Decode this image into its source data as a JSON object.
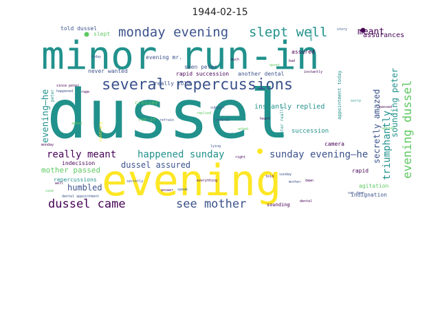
{
  "chart_data": {
    "type": "wordcloud",
    "title": "1944-02-15",
    "palette": [
      "#440154",
      "#3b528b",
      "#21918c",
      "#5ec962",
      "#fde725"
    ],
    "words": [
      {
        "text": "dussel",
        "weight": 1.0,
        "color": "#21918c"
      },
      {
        "text": "minor run-in",
        "weight": 0.66,
        "color": "#21918c"
      },
      {
        "text": "evening",
        "weight": 0.6,
        "color": "#fde725"
      },
      {
        "text": "several repercussions",
        "weight": 0.3,
        "color": "#3b528b"
      },
      {
        "text": "monday evening",
        "weight": 0.26,
        "color": "#3b528b"
      },
      {
        "text": "slept well",
        "weight": 0.26,
        "color": "#21918c"
      },
      {
        "text": "dussel came",
        "weight": 0.24,
        "color": "#440154"
      },
      {
        "text": "see mother",
        "weight": 0.24,
        "color": "#3b528b"
      },
      {
        "text": "evening dussel",
        "weight": 0.2,
        "color": "#5ec962"
      },
      {
        "text": "triumphantly",
        "weight": 0.17,
        "color": "#21918c"
      },
      {
        "text": "sunday evening—he",
        "weight": 0.17,
        "color": "#3b528b"
      },
      {
        "text": "happened sunday",
        "weight": 0.17,
        "color": "#21918c"
      },
      {
        "text": "really meant",
        "weight": 0.17,
        "color": "#440154"
      },
      {
        "text": "evening—he",
        "weight": 0.15,
        "color": "#21918c"
      },
      {
        "text": "meant",
        "weight": 0.15,
        "color": "#440154"
      },
      {
        "text": "dussel assured",
        "weight": 0.14,
        "color": "#3b528b"
      },
      {
        "text": "sounding peter",
        "weight": 0.13,
        "color": "#21918c"
      },
      {
        "text": "secretly amazed",
        "weight": 0.13,
        "color": "#3b528b"
      },
      {
        "text": "humbled",
        "weight": 0.13,
        "color": "#3b528b"
      },
      {
        "text": "mother passed",
        "weight": 0.12,
        "color": "#5ec962"
      },
      {
        "text": "assurances",
        "weight": 0.11,
        "color": "#440154"
      },
      {
        "text": "instantly replied",
        "weight": 0.1,
        "color": "#21918c"
      },
      {
        "text": "rapid succession",
        "weight": 0.09,
        "color": "#440154"
      },
      {
        "text": "another dental",
        "weight": 0.09,
        "color": "#3b528b"
      },
      {
        "text": "never wanted",
        "weight": 0.09,
        "color": "#3b528b"
      },
      {
        "text": "crossed",
        "weight": 0.09,
        "color": "#5ec962"
      },
      {
        "text": "seen peter",
        "weight": 0.08,
        "color": "#3b528b"
      },
      {
        "text": "evening mr.",
        "weight": 0.08,
        "color": "#3b528b"
      },
      {
        "text": "assured",
        "weight": 0.08,
        "color": "#440154"
      },
      {
        "text": "really told",
        "weight": 0.08,
        "color": "#3b528b"
      },
      {
        "text": "told dussel",
        "weight": 0.08,
        "color": "#3b528b"
      },
      {
        "text": "slept",
        "weight": 0.08,
        "color": "#5ec962"
      },
      {
        "text": "camera",
        "weight": 0.09,
        "color": "#440154"
      },
      {
        "text": "succession",
        "weight": 0.09,
        "color": "#21918c"
      },
      {
        "text": "indecision",
        "weight": 0.08,
        "color": "#440154"
      },
      {
        "text": "repercussions",
        "weight": 0.08,
        "color": "#21918c"
      },
      {
        "text": "rapid",
        "weight": 0.08,
        "color": "#440154"
      },
      {
        "text": "agitation",
        "weight": 0.08,
        "color": "#5ec962"
      },
      {
        "text": "indignation",
        "weight": 0.08,
        "color": "#3b528b"
      },
      {
        "text": "sounding",
        "weight": 0.07,
        "color": "#440154"
      },
      {
        "text": "appointment today",
        "weight": 0.07,
        "color": "#21918c"
      },
      {
        "text": "run-in",
        "weight": 0.07,
        "color": "#5ec962"
      },
      {
        "text": "peter really",
        "weight": 0.07,
        "color": "#21918c"
      },
      {
        "text": "peter",
        "weight": 0.06,
        "color": "#21918c"
      },
      {
        "text": "contrary",
        "weight": 0.06,
        "color": "#fde725"
      },
      {
        "text": "subject",
        "weight": 0.05,
        "color": "#3b528b"
      },
      {
        "text": "replied",
        "weight": 0.05,
        "color": "#5ec962"
      },
      {
        "text": "several",
        "weight": 0.05,
        "color": "#3b528b"
      },
      {
        "text": "actually",
        "weight": 0.05,
        "color": "#21918c"
      },
      {
        "text": "refrain",
        "weight": 0.05,
        "color": "#3b528b"
      },
      {
        "text": "everything",
        "weight": 0.05,
        "color": "#440154"
      },
      {
        "text": "happened",
        "weight": 0.05,
        "color": "#3b528b"
      },
      {
        "text": "rage",
        "weight": 0.05,
        "color": "#440154"
      },
      {
        "text": "since peter",
        "weight": 0.05,
        "color": "#440154"
      },
      {
        "text": "heart",
        "weight": 0.05,
        "color": "#440154"
      },
      {
        "text": "sorry",
        "weight": 0.05,
        "color": "#21918c"
      },
      {
        "text": "today",
        "weight": 0.05,
        "color": "#3b528b"
      },
      {
        "text": "much",
        "weight": 0.05,
        "color": "#440154"
      },
      {
        "text": "upset",
        "weight": 0.05,
        "color": "#5ec962"
      },
      {
        "text": "bad",
        "weight": 0.05,
        "color": "#440154"
      },
      {
        "text": "monday",
        "weight": 0.05,
        "color": "#440154"
      },
      {
        "text": "added",
        "weight": 0.05,
        "color": "#5ec962"
      },
      {
        "text": "lying",
        "weight": 0.05,
        "color": "#3b528b"
      },
      {
        "text": "right",
        "weight": 0.05,
        "color": "#440154"
      },
      {
        "text": "speak",
        "weight": 0.05,
        "color": "#3b528b"
      },
      {
        "text": "well",
        "weight": 0.05,
        "color": "#440154"
      },
      {
        "text": "dental",
        "weight": 0.05,
        "color": "#440154"
      },
      {
        "text": "dental appointment",
        "weight": 0.05,
        "color": "#3b528b"
      },
      {
        "text": "case",
        "weight": 0.05,
        "color": "#5ec962"
      },
      {
        "text": "dawn",
        "weight": 0.05,
        "color": "#440154"
      },
      {
        "text": "van daan",
        "weight": 0.05,
        "color": "#3b528b"
      },
      {
        "text": "instantly",
        "weight": 0.05,
        "color": "#440154"
      },
      {
        "text": "secretly",
        "weight": 0.05,
        "color": "#3b528b"
      },
      {
        "text": "answer",
        "weight": 0.05,
        "color": "#440154"
      },
      {
        "text": "asked",
        "weight": 0.05,
        "color": "#5ec962"
      },
      {
        "text": "sunday",
        "weight": 0.05,
        "color": "#3b528b"
      },
      {
        "text": "told",
        "weight": 0.05,
        "color": "#440154"
      },
      {
        "text": "amazed",
        "weight": 0.05,
        "color": "#21918c"
      },
      {
        "text": "mother",
        "weight": 0.05,
        "color": "#3b528b"
      },
      {
        "text": "wanted",
        "weight": 0.05,
        "color": "#5ec962"
      },
      {
        "text": "passed",
        "weight": 0.05,
        "color": "#440154"
      },
      {
        "text": "story",
        "weight": 0.05,
        "color": "#3b528b"
      }
    ]
  }
}
